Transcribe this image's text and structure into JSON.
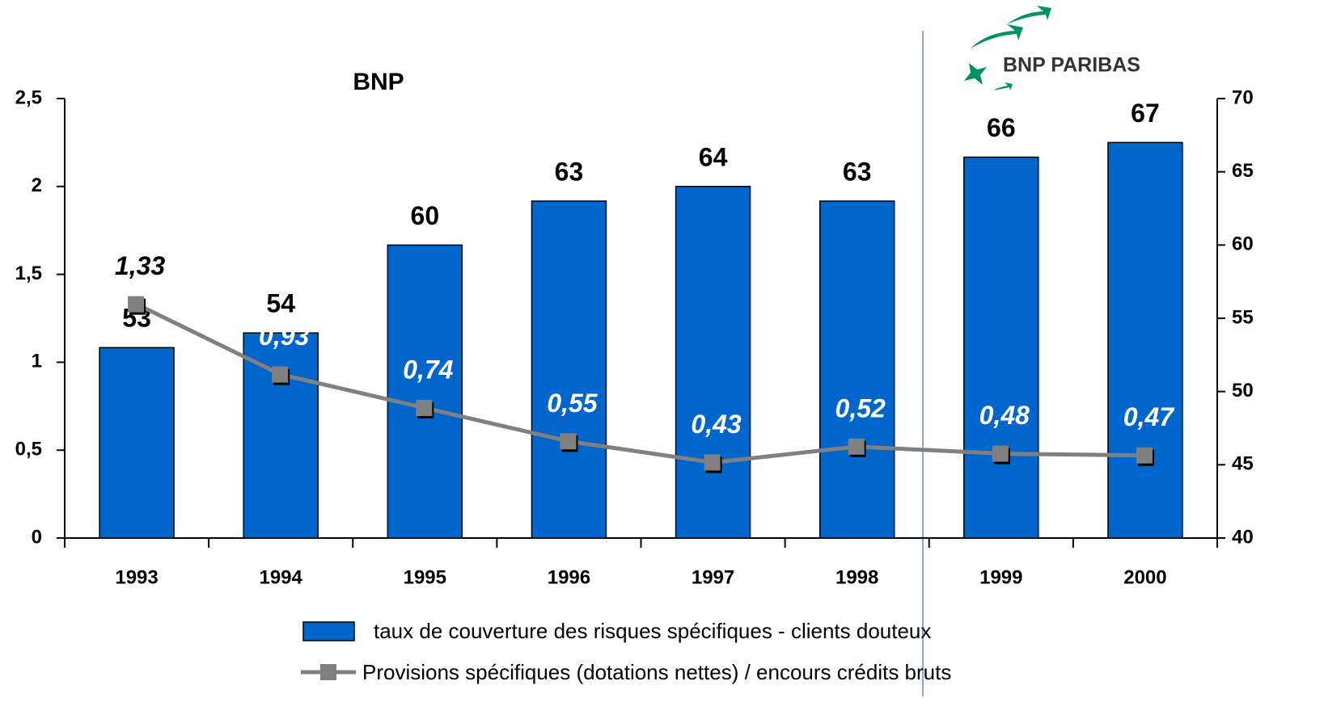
{
  "logo": {
    "text": "BNP PARIBAS"
  },
  "chart_data": {
    "type": "bar",
    "title": "BNP",
    "categories": [
      "1993",
      "1994",
      "1995",
      "1996",
      "1997",
      "1998",
      "1999",
      "2000"
    ],
    "series": [
      {
        "name": "taux de couverture des risques spécifiques - clients douteux",
        "type": "bar",
        "axis": "y2",
        "color": "#0066cc",
        "values": [
          53,
          54,
          60,
          63,
          64,
          63,
          66,
          67
        ]
      },
      {
        "name": "Provisions spécifiques (dotations nettes) / encours crédits bruts",
        "type": "line",
        "color": "#808080",
        "values": [
          1.33,
          0.93,
          0.74,
          0.55,
          0.43,
          0.52,
          0.48,
          0.47
        ],
        "value_labels": [
          "1,33",
          "0,93",
          "0,74",
          "0,55",
          "0,43",
          "0,52",
          "0,48",
          "0,47"
        ]
      }
    ],
    "ylim": [
      0,
      2.5
    ],
    "yticks": [
      0,
      {
        "value": 0.5,
        "label": "0,5"
      },
      1,
      {
        "value": 1.5,
        "label": "1,5"
      },
      2,
      {
        "value": 2.5,
        "label": "2,5"
      }
    ],
    "y2lim": [
      40,
      70
    ],
    "y2ticks": [
      40,
      45,
      50,
      55,
      60,
      65,
      70
    ]
  }
}
